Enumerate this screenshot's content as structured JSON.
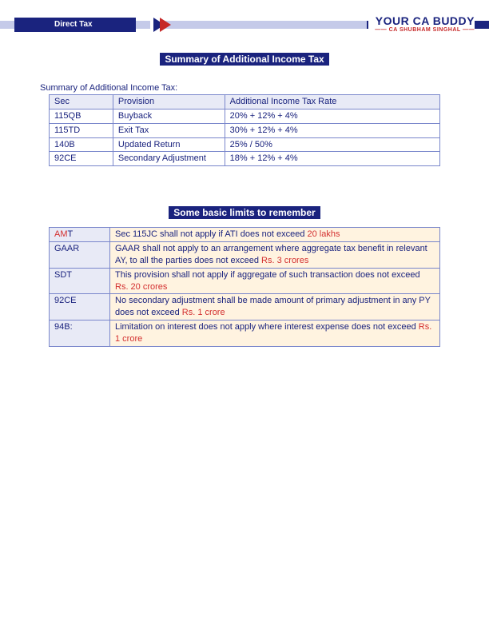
{
  "header": {
    "badge": "Direct Tax",
    "brand_main": "YOUR CA BUDDY",
    "brand_sub": "—— CA SHUBHAM SINGHAL ——"
  },
  "title1": "Summary of Additional Income Tax",
  "subtitle1": "Summary of Additional Income Tax:",
  "table1": {
    "columns": [
      "Sec",
      "Provision",
      "Additional Income Tax Rate"
    ],
    "rows": [
      [
        "115QB",
        "Buyback",
        "20% + 12% + 4%"
      ],
      [
        "115TD",
        "Exit Tax",
        "30% + 12% + 4%"
      ],
      [
        "140B",
        "Updated Return",
        "25% / 50%"
      ],
      [
        "92CE",
        "Secondary Adjustment",
        "18% + 12% + 4%"
      ]
    ]
  },
  "title2": "Some basic limits to remember",
  "limits": [
    {
      "label_prefix_red": "AM",
      "label_rest": "T",
      "text": "Sec 115JC shall not apply if ATI does not exceed ",
      "amount": "20 lakhs"
    },
    {
      "label": "GAAR",
      "text": "GAAR shall not apply to an arrangement where aggregate tax benefit in relevant AY, to all the parties does not exceed ",
      "amount": "Rs. 3 crores"
    },
    {
      "label": "SDT",
      "text": "This provision shall not apply if aggregate of such transaction does not exceed ",
      "amount": "Rs. 20 crores"
    },
    {
      "label": "92CE",
      "text": "No secondary adjustment shall be made amount of primary adjustment in any PY does not exceed ",
      "amount": "Rs. 1 crore"
    },
    {
      "label": "94B:",
      "text": "Limitation on interest does not apply where interest expense does not exceed ",
      "amount": "Rs. 1 crore"
    }
  ],
  "colors": {
    "brand_blue": "#1a237e",
    "brand_red": "#c62828",
    "cell_blue_bg": "#e8eaf6",
    "cell_peach_bg": "#fff3e0",
    "accent_red": "#d32f2f",
    "border": "#7986cb"
  },
  "typography": {
    "title_fontsize": 12,
    "body_fontsize": 11,
    "brand_main_fontsize": 14,
    "brand_sub_fontsize": 7
  }
}
